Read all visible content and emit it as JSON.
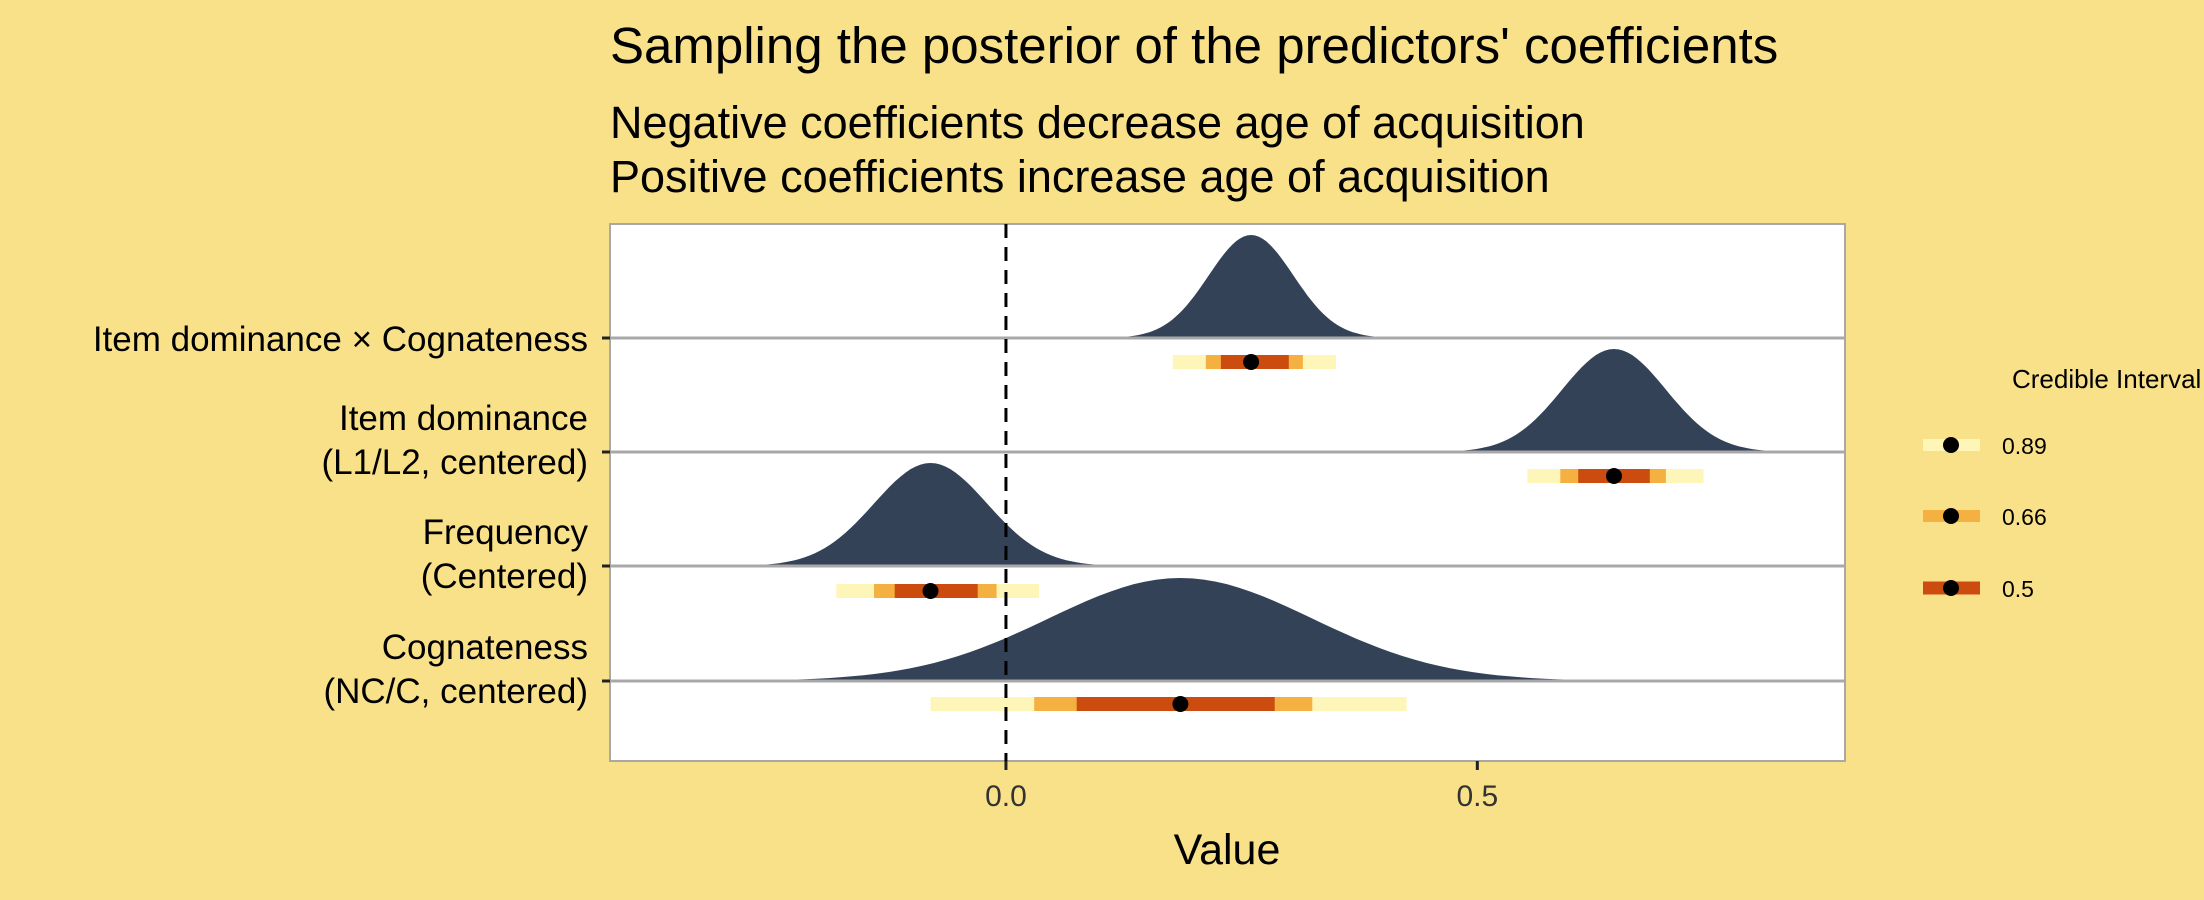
{
  "chart_data": {
    "type": "ridgeline",
    "title": "Sampling the posterior of the predictors' coefficients",
    "subtitle_lines": [
      "Negative coefficients decrease age of acquisition",
      "Positive coefficients increase age of acquisition"
    ],
    "xlabel": "Value",
    "xlim": [
      -0.42,
      0.89
    ],
    "xticks": [
      0.0,
      0.5
    ],
    "xtick_labels": [
      "0.0",
      "0.5"
    ],
    "reference_line": 0,
    "legend": {
      "title": "Credible Interval",
      "entries": [
        {
          "label": "0.89",
          "color": "#fdf6b8"
        },
        {
          "label": "0.66",
          "color": "#f5b042"
        },
        {
          "label": "0.5",
          "color": "#cc4c10"
        }
      ]
    },
    "colors": {
      "density": "#344258",
      "panel": "#ffffff",
      "background": "#f9e18a",
      "point": "#000000",
      "ci89": "#fdf6b8",
      "ci66": "#f5b042",
      "ci50": "#cc4c10"
    },
    "series": [
      {
        "name_lines": [
          "Item dominance × Cognateness"
        ],
        "mean": 0.26,
        "sd": 0.045,
        "ci89": [
          0.177,
          0.35
        ],
        "ci66": [
          0.212,
          0.315
        ],
        "ci50": [
          0.228,
          0.3
        ]
      },
      {
        "name_lines": [
          "Item dominance",
          "(L1/L2, centered)"
        ],
        "mean": 0.645,
        "sd": 0.055,
        "ci89": [
          0.553,
          0.74
        ],
        "ci66": [
          0.588,
          0.7
        ],
        "ci50": [
          0.607,
          0.683
        ]
      },
      {
        "name_lines": [
          "Frequency",
          "(Centered)"
        ],
        "mean": -0.08,
        "sd": 0.06,
        "ci89": [
          -0.18,
          0.035
        ],
        "ci66": [
          -0.14,
          -0.01
        ],
        "ci50": [
          -0.118,
          -0.03
        ]
      },
      {
        "name_lines": [
          "Cognateness",
          "(NC/C, centered)"
        ],
        "mean": 0.185,
        "sd": 0.14,
        "ci89": [
          -0.08,
          0.425
        ],
        "ci66": [
          0.03,
          0.325
        ],
        "ci50": [
          0.075,
          0.285
        ]
      }
    ]
  }
}
